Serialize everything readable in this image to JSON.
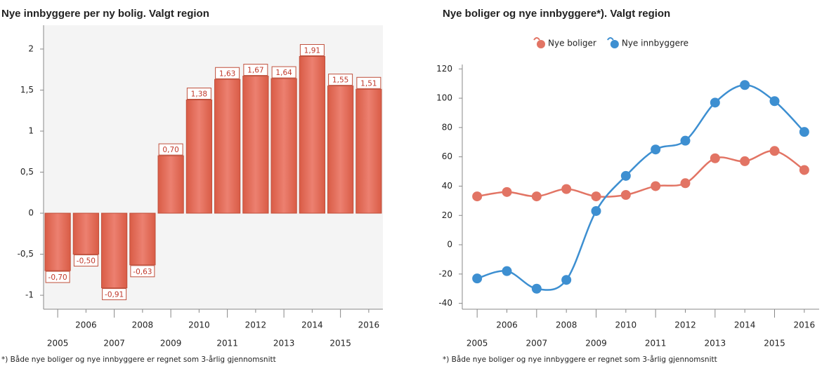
{
  "chart_data": [
    {
      "type": "bar",
      "title": "Nye innbyggere per ny bolig. Valgt region",
      "categories": [
        "2005",
        "2006",
        "2007",
        "2008",
        "2009",
        "2010",
        "2011",
        "2012",
        "2013",
        "2014",
        "2015",
        "2016"
      ],
      "values": [
        -0.7,
        -0.5,
        -0.91,
        -0.63,
        0.7,
        1.38,
        1.63,
        1.67,
        1.64,
        1.91,
        1.55,
        1.51
      ],
      "value_labels": [
        "-0,70",
        "-0,50",
        "-0,91",
        "-0,63",
        "0,70",
        "1,38",
        "1,63",
        "1,67",
        "1,64",
        "1,91",
        "1,55",
        "1,51"
      ],
      "color": "#e06a55",
      "ylim": [
        -1.17,
        2.29
      ],
      "yticks": [
        -1,
        {
          "value": -0.5,
          "label": "-0,5"
        },
        0,
        {
          "value": 0.5,
          "label": "0,5"
        },
        1,
        {
          "value": 1.5,
          "label": "1,5"
        },
        2
      ],
      "footnote": "*) Både nye boliger og nye innbyggere er regnet som 3-årlig gjennomsnitt"
    },
    {
      "type": "line",
      "title": "Nye boliger og nye innbyggere*). Valgt region",
      "categories": [
        "2005",
        "2006",
        "2007",
        "2008",
        "2009",
        "2010",
        "2011",
        "2012",
        "2013",
        "2014",
        "2015",
        "2016"
      ],
      "series": [
        {
          "name": "Nye boliger",
          "color": "#e27464",
          "values": [
            33,
            36,
            33,
            38,
            33,
            34,
            40,
            42,
            59,
            57,
            64,
            51
          ]
        },
        {
          "name": "Nye innbyggere",
          "color": "#3d8fd1",
          "values": [
            -23,
            -18,
            -30,
            -24,
            23,
            47,
            65,
            71,
            97,
            109,
            98,
            77
          ]
        }
      ],
      "legend": "top",
      "ylim": [
        -44,
        123
      ],
      "yticks": [
        -40,
        -20,
        0,
        20,
        40,
        60,
        80,
        100,
        120
      ],
      "footnote": "*) Både nye boliger og nye innbyggere er regnet som 3-årlig gjennomsnitt"
    }
  ]
}
